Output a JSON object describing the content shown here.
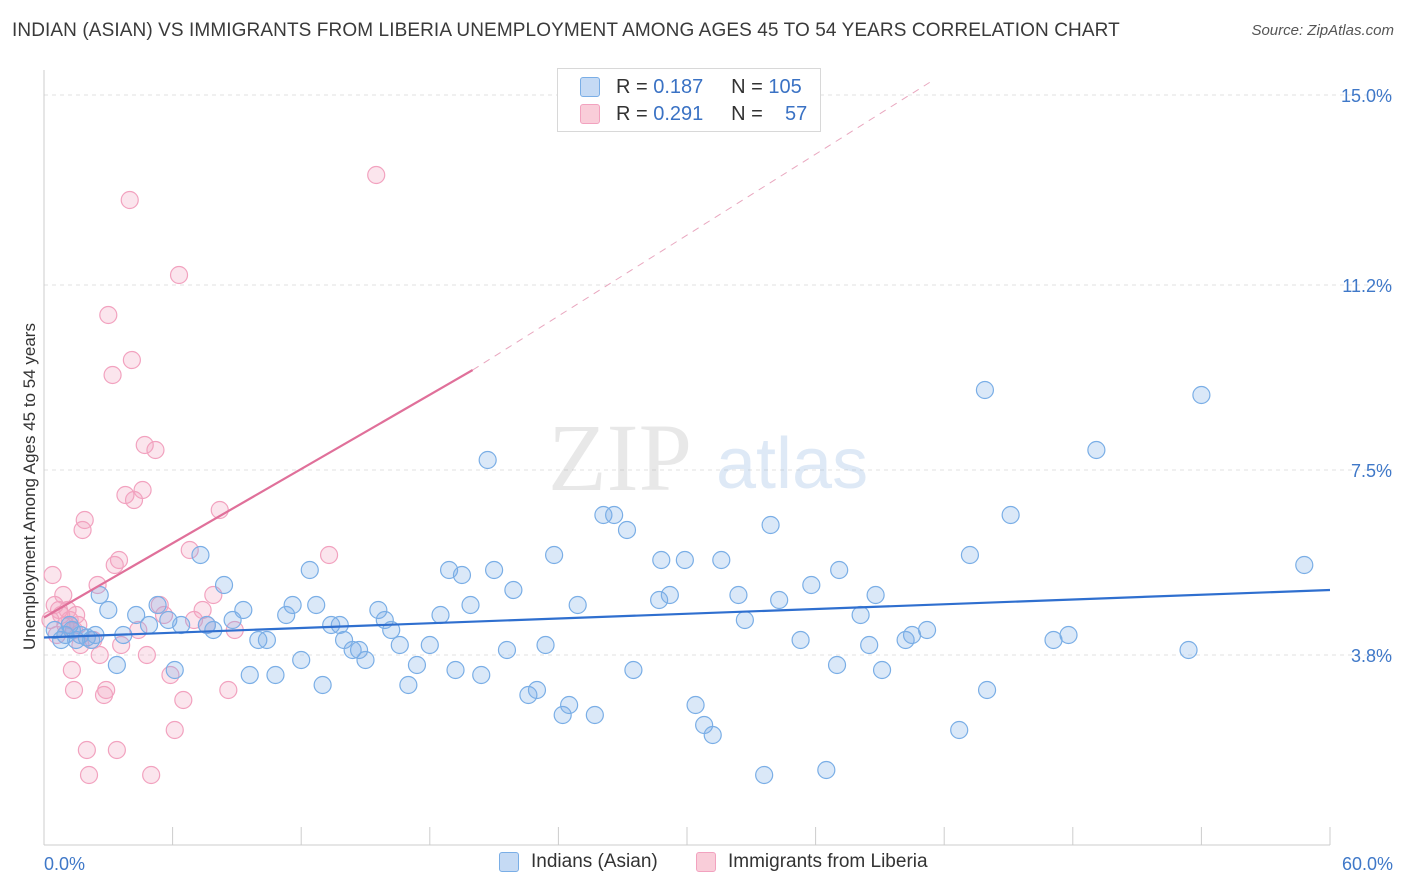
{
  "title": "INDIAN (ASIAN) VS IMMIGRANTS FROM LIBERIA UNEMPLOYMENT AMONG AGES 45 TO 54 YEARS CORRELATION CHART",
  "source": "Source: ZipAtlas.com",
  "watermark": {
    "zip": "ZIP",
    "atlas": "atlas"
  },
  "legend_top": {
    "rows": [
      {
        "r_label": "R =",
        "r_value": "0.187",
        "n_label": "N =",
        "n_value": "105"
      },
      {
        "r_label": "R =",
        "r_value": "0.291",
        "n_label": "N =",
        "n_value": "57"
      }
    ]
  },
  "legend_bottom": [
    "Indians (Asian)",
    "Immigrants from Liberia"
  ],
  "chart_data": {
    "type": "scatter",
    "title": "INDIAN (ASIAN) VS IMMIGRANTS FROM LIBERIA UNEMPLOYMENT AMONG AGES 45 TO 54 YEARS CORRELATION CHART",
    "xlabel": "",
    "ylabel": "Unemployment Among Ages 45 to 54 years",
    "xlim": [
      0,
      60
    ],
    "ylim": [
      0,
      15.5
    ],
    "x_tick_labels": [
      "0.0%",
      "60.0%"
    ],
    "y_ticks": [
      3.8,
      7.5,
      11.2,
      15.0
    ],
    "y_tick_labels": [
      "3.8%",
      "7.5%",
      "11.2%",
      "15.0%"
    ],
    "colors": {
      "blue": "#7aaee6",
      "blue_line": "#2f6fcf",
      "pink": "#f2a2bf",
      "pink_line": "#e0709a",
      "tick_text": "#3f78c8"
    },
    "series": [
      {
        "name": "Indians (Asian)",
        "color": "#7aaee6",
        "R": 0.187,
        "N": 105,
        "trend": {
          "x": [
            0,
            60
          ],
          "y": [
            4.15,
            5.1
          ]
        },
        "points": [
          [
            0.5,
            4.3
          ],
          [
            0.8,
            4.1
          ],
          [
            1.0,
            4.2
          ],
          [
            1.2,
            4.4
          ],
          [
            1.3,
            4.3
          ],
          [
            1.5,
            4.1
          ],
          [
            1.7,
            4.2
          ],
          [
            2.0,
            4.15
          ],
          [
            2.2,
            4.1
          ],
          [
            2.4,
            4.2
          ],
          [
            2.6,
            5.0
          ],
          [
            3.0,
            4.7
          ],
          [
            3.4,
            3.6
          ],
          [
            3.7,
            4.2
          ],
          [
            4.3,
            4.6
          ],
          [
            4.9,
            4.4
          ],
          [
            5.3,
            4.8
          ],
          [
            5.8,
            4.5
          ],
          [
            6.1,
            3.5
          ],
          [
            6.4,
            4.4
          ],
          [
            7.3,
            5.8
          ],
          [
            7.6,
            4.4
          ],
          [
            7.9,
            4.3
          ],
          [
            8.4,
            5.2
          ],
          [
            8.8,
            4.5
          ],
          [
            9.3,
            4.7
          ],
          [
            9.6,
            3.4
          ],
          [
            10.0,
            4.1
          ],
          [
            10.4,
            4.1
          ],
          [
            10.8,
            3.4
          ],
          [
            11.3,
            4.6
          ],
          [
            11.6,
            4.8
          ],
          [
            12.0,
            3.7
          ],
          [
            12.4,
            5.5
          ],
          [
            12.7,
            4.8
          ],
          [
            13.0,
            3.2
          ],
          [
            13.4,
            4.4
          ],
          [
            13.8,
            4.4
          ],
          [
            14.0,
            4.1
          ],
          [
            14.4,
            3.9
          ],
          [
            14.7,
            3.9
          ],
          [
            15.0,
            3.7
          ],
          [
            15.6,
            4.7
          ],
          [
            15.9,
            4.5
          ],
          [
            16.2,
            4.3
          ],
          [
            16.6,
            4.0
          ],
          [
            17.0,
            3.2
          ],
          [
            17.4,
            3.6
          ],
          [
            18.0,
            4.0
          ],
          [
            18.5,
            4.6
          ],
          [
            18.9,
            5.5
          ],
          [
            19.2,
            3.5
          ],
          [
            19.5,
            5.4
          ],
          [
            19.9,
            4.8
          ],
          [
            20.4,
            3.4
          ],
          [
            20.7,
            7.7
          ],
          [
            21.0,
            5.5
          ],
          [
            21.6,
            3.9
          ],
          [
            21.9,
            5.1
          ],
          [
            22.6,
            3.0
          ],
          [
            23.0,
            3.1
          ],
          [
            23.4,
            4.0
          ],
          [
            23.8,
            5.8
          ],
          [
            24.2,
            2.6
          ],
          [
            24.5,
            2.8
          ],
          [
            24.9,
            4.8
          ],
          [
            25.7,
            2.6
          ],
          [
            26.1,
            6.6
          ],
          [
            26.6,
            6.6
          ],
          [
            27.2,
            6.3
          ],
          [
            27.5,
            3.5
          ],
          [
            28.7,
            4.9
          ],
          [
            28.8,
            5.7
          ],
          [
            29.2,
            5.0
          ],
          [
            29.9,
            5.7
          ],
          [
            30.4,
            2.8
          ],
          [
            30.8,
            2.4
          ],
          [
            31.2,
            2.2
          ],
          [
            31.6,
            5.7
          ],
          [
            32.4,
            5.0
          ],
          [
            32.7,
            4.5
          ],
          [
            33.6,
            1.4
          ],
          [
            33.9,
            6.4
          ],
          [
            34.3,
            4.9
          ],
          [
            35.3,
            4.1
          ],
          [
            35.8,
            5.2
          ],
          [
            36.5,
            1.5
          ],
          [
            37.0,
            3.6
          ],
          [
            37.1,
            5.5
          ],
          [
            38.1,
            4.6
          ],
          [
            38.5,
            4.0
          ],
          [
            38.8,
            5.0
          ],
          [
            39.1,
            3.5
          ],
          [
            40.2,
            4.1
          ],
          [
            40.5,
            4.2
          ],
          [
            41.2,
            4.3
          ],
          [
            42.7,
            2.3
          ],
          [
            43.2,
            5.8
          ],
          [
            43.9,
            9.1
          ],
          [
            44.0,
            3.1
          ],
          [
            45.1,
            6.6
          ],
          [
            47.1,
            4.1
          ],
          [
            47.8,
            4.2
          ],
          [
            49.1,
            7.9
          ],
          [
            53.4,
            3.9
          ],
          [
            54.0,
            9.0
          ],
          [
            58.8,
            5.6
          ]
        ]
      },
      {
        "name": "Immigrants from Liberia",
        "color": "#f2a2bf",
        "R": 0.291,
        "N": 57,
        "trend": {
          "x": [
            0,
            20.0
          ],
          "y": [
            4.55,
            9.5
          ]
        },
        "trend_extension": {
          "x": [
            20.0,
            41.5
          ],
          "y": [
            9.5,
            15.3
          ]
        },
        "points": [
          [
            0.3,
            4.5
          ],
          [
            0.4,
            5.4
          ],
          [
            0.5,
            4.8
          ],
          [
            0.6,
            4.2
          ],
          [
            0.7,
            4.7
          ],
          [
            0.8,
            4.6
          ],
          [
            0.9,
            5.0
          ],
          [
            1.0,
            4.4
          ],
          [
            1.1,
            4.7
          ],
          [
            1.2,
            4.5
          ],
          [
            1.3,
            3.5
          ],
          [
            1.4,
            3.1
          ],
          [
            1.4,
            4.3
          ],
          [
            1.5,
            4.6
          ],
          [
            1.6,
            4.4
          ],
          [
            1.7,
            4.0
          ],
          [
            1.8,
            6.3
          ],
          [
            1.9,
            6.5
          ],
          [
            2.0,
            1.9
          ],
          [
            2.1,
            1.4
          ],
          [
            2.3,
            4.1
          ],
          [
            2.5,
            5.2
          ],
          [
            2.6,
            3.8
          ],
          [
            2.8,
            3.0
          ],
          [
            2.9,
            3.1
          ],
          [
            3.0,
            10.6
          ],
          [
            3.2,
            9.4
          ],
          [
            3.3,
            5.6
          ],
          [
            3.4,
            1.9
          ],
          [
            3.5,
            5.7
          ],
          [
            3.6,
            4.0
          ],
          [
            3.8,
            7.0
          ],
          [
            4.0,
            12.9
          ],
          [
            4.1,
            9.7
          ],
          [
            4.2,
            6.9
          ],
          [
            4.4,
            4.3
          ],
          [
            4.6,
            7.1
          ],
          [
            4.7,
            8.0
          ],
          [
            4.8,
            3.8
          ],
          [
            5.0,
            1.4
          ],
          [
            5.2,
            7.9
          ],
          [
            5.4,
            4.8
          ],
          [
            5.6,
            4.6
          ],
          [
            5.9,
            3.4
          ],
          [
            6.1,
            2.3
          ],
          [
            6.3,
            11.4
          ],
          [
            6.5,
            2.9
          ],
          [
            6.8,
            5.9
          ],
          [
            7.0,
            4.5
          ],
          [
            7.4,
            4.7
          ],
          [
            7.6,
            4.4
          ],
          [
            7.9,
            5.0
          ],
          [
            8.2,
            6.7
          ],
          [
            8.6,
            3.1
          ],
          [
            8.9,
            4.3
          ],
          [
            13.3,
            5.8
          ],
          [
            15.5,
            13.4
          ]
        ]
      }
    ]
  }
}
